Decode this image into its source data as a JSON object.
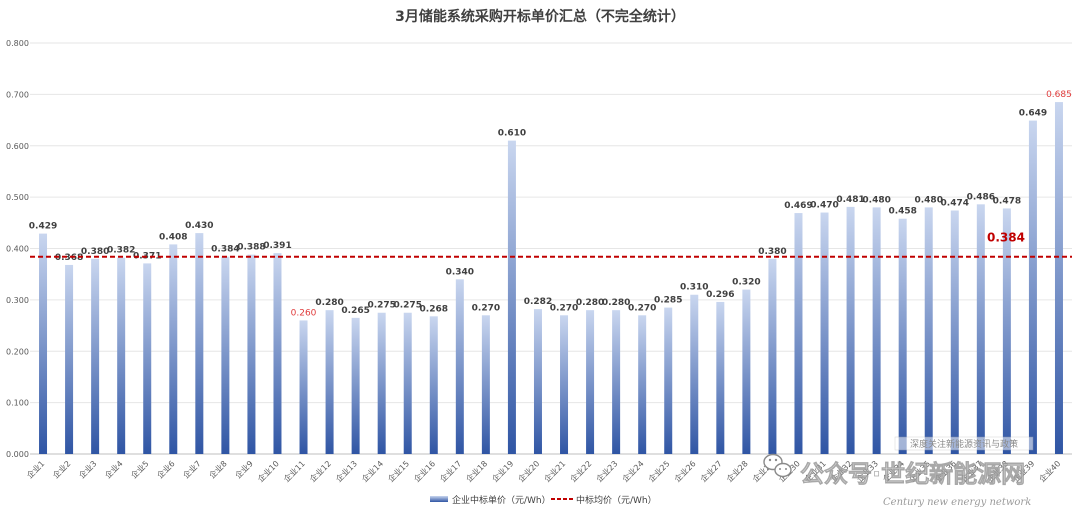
{
  "chart_data": {
    "type": "bar",
    "title": "3月储能系统采购开标单价汇总（不完全统计）",
    "categories": [
      "企业1",
      "企业2",
      "企业3",
      "企业4",
      "企业5",
      "企业6",
      "企业7",
      "企业8",
      "企业9",
      "企业10",
      "企业11",
      "企业12",
      "企业13",
      "企业14",
      "企业15",
      "企业16",
      "企业17",
      "企业18",
      "企业19",
      "企业20",
      "企业21",
      "企业22",
      "企业23",
      "企业24",
      "企业25",
      "企业26",
      "企业27",
      "企业28",
      "企业29",
      "企业30",
      "企业31",
      "企业32",
      "企业33",
      "企业34",
      "企业35",
      "企业36",
      "企业37",
      "企业38",
      "企业39",
      "企业40"
    ],
    "series": [
      {
        "name": "企业中标单价（元/Wh）",
        "values": [
          0.429,
          0.368,
          0.38,
          0.382,
          0.371,
          0.408,
          0.43,
          0.384,
          0.388,
          0.391,
          0.26,
          0.28,
          0.265,
          0.275,
          0.275,
          0.268,
          0.34,
          0.27,
          0.61,
          0.282,
          0.27,
          0.28,
          0.28,
          0.27,
          0.285,
          0.31,
          0.296,
          0.32,
          0.38,
          0.469,
          0.47,
          0.481,
          0.48,
          0.458,
          0.48,
          0.474,
          0.486,
          0.478,
          0.649,
          0.685
        ],
        "labels": [
          "0.429",
          "0.368",
          "0.380",
          "0.382",
          "0.371",
          "0.408",
          "0.430",
          "0.384",
          "0.388",
          "0.391",
          "0.260",
          "0.280",
          "0.265",
          "0.275",
          "0.275",
          "0.268",
          "0.340",
          "0.270",
          "0.610",
          "0.282",
          "0.270",
          "0.280",
          "0.280",
          "0.270",
          "0.285",
          "0.310",
          "0.296",
          "0.320",
          "0.380",
          "0.469",
          "0.470",
          "0.481",
          "0.480",
          "0.458",
          "0.480",
          "0.474",
          "0.486",
          "0.478",
          "0.649",
          "0.685"
        ],
        "highlight_indices": [
          10,
          39
        ],
        "color_top": "#c9d6ef",
        "color_bottom": "#2f55a4"
      }
    ],
    "average": {
      "name": "中标均价（元/Wh）",
      "value": 0.384,
      "label": "0.384",
      "color": "#c00000"
    },
    "ylim": [
      0,
      0.8
    ],
    "yticks": [
      "0.000",
      "0.100",
      "0.200",
      "0.300",
      "0.400",
      "0.500",
      "0.600",
      "0.700",
      "0.800"
    ],
    "grid": true,
    "legend_position": "bottom-center",
    "highlight_color": "#e03c3c",
    "xlabel": "",
    "ylabel": ""
  },
  "watermark": {
    "line1": "深度关注新能源资讯与政策",
    "line2": "公众号·世纪新能源网",
    "line3": "Century new energy network"
  }
}
